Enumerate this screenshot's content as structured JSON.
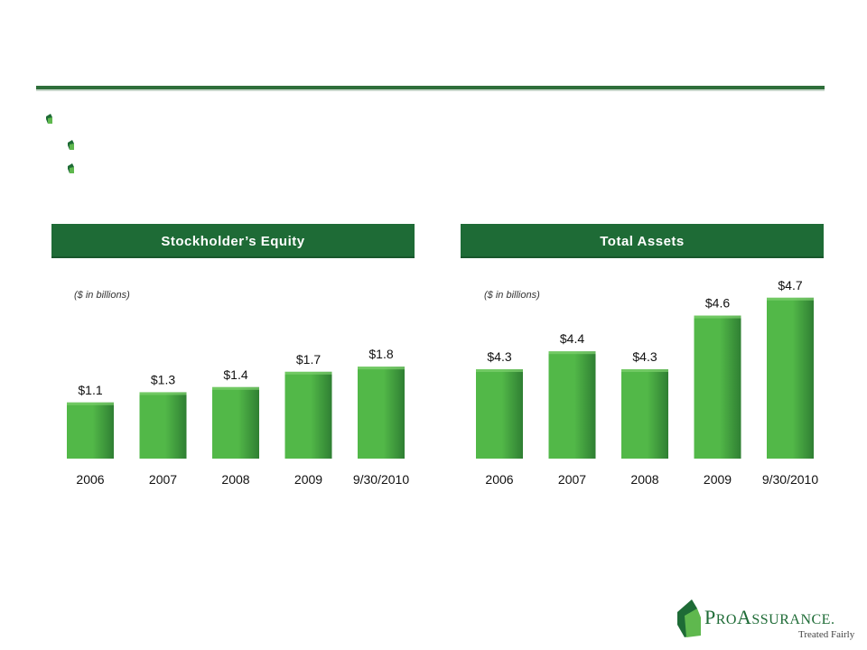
{
  "colors": {
    "accent": "#1e6b36",
    "bar_light": "#52b848",
    "bar_dark": "#2f7f33",
    "rule": "#2e6e3a"
  },
  "bullets": [
    {
      "level": 1,
      "icon": "leaf-bullet-icon"
    },
    {
      "level": 2,
      "icon": "leaf-bullet-icon"
    },
    {
      "level": 2,
      "icon": "leaf-bullet-icon"
    }
  ],
  "chart_data": [
    {
      "type": "bar",
      "title": "Stockholder’s Equity",
      "note": "($ in billions)",
      "categories": [
        "2006",
        "2007",
        "2008",
        "2009",
        "9/30/2010"
      ],
      "values": [
        1.1,
        1.3,
        1.4,
        1.7,
        1.8
      ],
      "labels": [
        "$1.1",
        "$1.3",
        "$1.4",
        "$1.7",
        "$1.8"
      ],
      "ylim": [
        0,
        3.5
      ],
      "grid": false
    },
    {
      "type": "bar",
      "title": "Total Assets",
      "note": "($ in billions)",
      "categories": [
        "2006",
        "2007",
        "2008",
        "2009",
        "9/30/2010"
      ],
      "values": [
        4.3,
        4.4,
        4.3,
        4.6,
        4.7
      ],
      "labels": [
        "$4.3",
        "$4.4",
        "$4.3",
        "$4.6",
        "$4.7"
      ],
      "ylim": [
        3.8,
        4.8
      ],
      "grid": false
    }
  ],
  "logo": {
    "brand": "ProAssurance.",
    "brand_parts": {
      "p": "P",
      "ro": "RO",
      "a": "A",
      "ssurance": "SSURANCE",
      "dot": "."
    },
    "tagline": "Treated Fairly",
    "icon": "proassurance-logo-icon"
  }
}
